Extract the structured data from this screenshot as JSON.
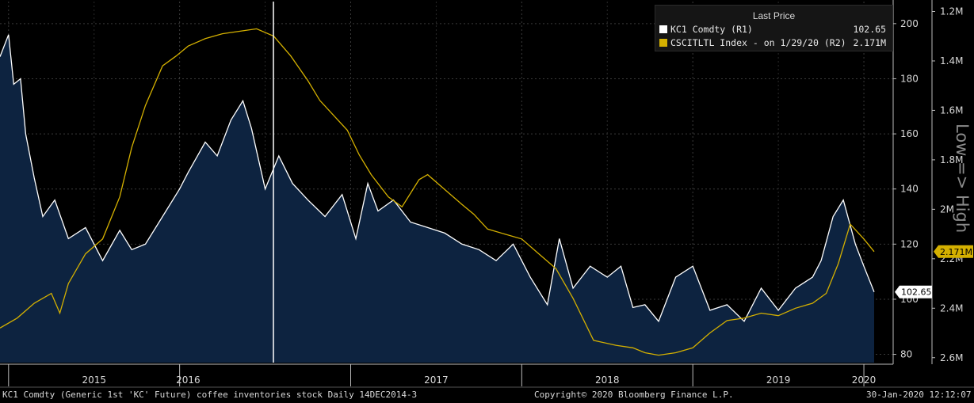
{
  "footer": {
    "left": "KC1 Comdty (Generic 1st 'KC' Future) coffee inventories stock  Daily 14DEC2014-3",
    "center": "Copyright© 2020 Bloomberg Finance L.P.",
    "right": "30-Jan-2020 12:12:07"
  },
  "legend": {
    "title": "Last Price",
    "items": [
      {
        "label": "KC1 Comdty  (R1)",
        "value": "102.65",
        "color": "#ffffff"
      },
      {
        "label": "CSCITLTL Index -  on 1/29/20  (R2)",
        "value": "2.171M",
        "color": "#d4b000"
      }
    ]
  },
  "chart_data": {
    "type": "area",
    "x_ticks": [
      "2015",
      "2016",
      "2017",
      "2018",
      "2019",
      "2020"
    ],
    "y_right1": {
      "ticks": [
        80,
        100,
        120,
        140,
        160,
        180,
        200
      ],
      "range": [
        77,
        208
      ]
    },
    "y_right2": {
      "ticks": [
        "1.2M",
        "1.4M",
        "1.6M",
        "1.8M",
        "2M",
        "2.2M",
        "2.4M",
        "2.6M"
      ],
      "tick_values": [
        1.2,
        1.4,
        1.6,
        1.8,
        2.0,
        2.2,
        2.4,
        2.6
      ],
      "range": [
        1.16,
        2.62
      ],
      "inverted": true,
      "title": "Low => High"
    },
    "last_value_labels": {
      "r1": "102.65",
      "r2": "2.171M"
    },
    "series": [
      {
        "name": "KC1 Comdty",
        "axis": "r1",
        "color": "#ffffff",
        "fill": "#0d2340",
        "x": [
          2014.95,
          2015.0,
          2015.03,
          2015.07,
          2015.1,
          2015.15,
          2015.2,
          2015.27,
          2015.35,
          2015.45,
          2015.55,
          2015.65,
          2015.72,
          2015.8,
          2015.9,
          2016.0,
          2016.05,
          2016.15,
          2016.22,
          2016.3,
          2016.37,
          2016.42,
          2016.5,
          2016.58,
          2016.66,
          2016.75,
          2016.85,
          2016.95,
          2017.03,
          2017.1,
          2017.16,
          2017.25,
          2017.35,
          2017.45,
          2017.55,
          2017.65,
          2017.75,
          2017.85,
          2017.95,
          2018.05,
          2018.15,
          2018.22,
          2018.3,
          2018.4,
          2018.5,
          2018.58,
          2018.65,
          2018.72,
          2018.8,
          2018.9,
          2019.0,
          2019.1,
          2019.2,
          2019.3,
          2019.4,
          2019.5,
          2019.6,
          2019.7,
          2019.75,
          2019.82,
          2019.88,
          2019.95,
          2020.0,
          2020.06
        ],
        "y": [
          188,
          196,
          178,
          180,
          160,
          144,
          130,
          136,
          122,
          126,
          114,
          125,
          118,
          120,
          130,
          140,
          146,
          157,
          152,
          165,
          172,
          162,
          140,
          152,
          142,
          136,
          130,
          138,
          122,
          142,
          132,
          136,
          128,
          126,
          124,
          120,
          118,
          114,
          120,
          108,
          98,
          122,
          104,
          112,
          108,
          112,
          97,
          98,
          92,
          108,
          112,
          96,
          98,
          92,
          104,
          96,
          104,
          108,
          114,
          130,
          136,
          120,
          112,
          102.65
        ]
      },
      {
        "name": "CSCITLTL Index",
        "axis": "r2",
        "color": "#d4b000",
        "x": [
          2014.95,
          2015.05,
          2015.15,
          2015.25,
          2015.3,
          2015.35,
          2015.45,
          2015.55,
          2015.65,
          2015.72,
          2015.8,
          2015.9,
          2015.98,
          2016.05,
          2016.15,
          2016.25,
          2016.35,
          2016.45,
          2016.55,
          2016.65,
          2016.75,
          2016.82,
          2016.9,
          2016.98,
          2017.05,
          2017.12,
          2017.22,
          2017.3,
          2017.4,
          2017.45,
          2017.55,
          2017.65,
          2017.72,
          2017.8,
          2017.9,
          2018.0,
          2018.1,
          2018.2,
          2018.3,
          2018.42,
          2018.55,
          2018.65,
          2018.72,
          2018.8,
          2018.9,
          2019.0,
          2019.1,
          2019.2,
          2019.3,
          2019.4,
          2019.5,
          2019.6,
          2019.7,
          2019.78,
          2019.85,
          2019.92,
          2020.0,
          2020.06
        ],
        "y": [
          2.48,
          2.44,
          2.38,
          2.34,
          2.42,
          2.3,
          2.18,
          2.12,
          1.95,
          1.75,
          1.58,
          1.42,
          1.38,
          1.34,
          1.31,
          1.29,
          1.28,
          1.27,
          1.3,
          1.38,
          1.48,
          1.56,
          1.62,
          1.68,
          1.78,
          1.86,
          1.95,
          1.99,
          1.88,
          1.86,
          1.92,
          1.98,
          2.02,
          2.08,
          2.1,
          2.12,
          2.18,
          2.24,
          2.36,
          2.53,
          2.55,
          2.56,
          2.58,
          2.59,
          2.58,
          2.56,
          2.5,
          2.45,
          2.44,
          2.42,
          2.43,
          2.4,
          2.38,
          2.34,
          2.22,
          2.06,
          2.12,
          2.171
        ]
      }
    ]
  }
}
